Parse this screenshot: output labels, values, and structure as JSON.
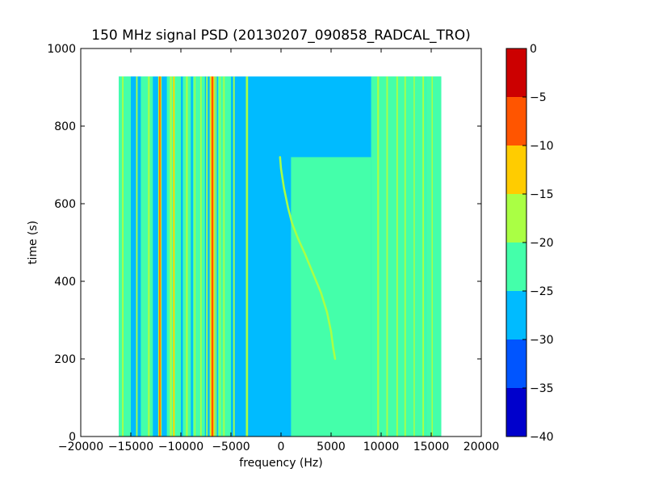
{
  "chart_data": {
    "type": "heatmap",
    "title": "150 MHz signal PSD (20130207_090858_RADCAL_TRO)",
    "xlabel": "frequency (Hz)",
    "ylabel": "time (s)",
    "xlim": [
      -20000,
      20000
    ],
    "ylim": [
      0,
      1000
    ],
    "x_ticks": [
      -20000,
      -15000,
      -10000,
      -5000,
      0,
      5000,
      10000,
      15000,
      20000
    ],
    "x_tick_labels": [
      "−20000",
      "−15000",
      "−10000",
      "−5000",
      "0",
      "5000",
      "10000",
      "15000",
      "20000"
    ],
    "y_ticks": [
      0,
      200,
      400,
      600,
      800,
      1000
    ],
    "y_tick_labels": [
      "0",
      "200",
      "400",
      "600",
      "800",
      "1000"
    ],
    "data_extent": {
      "x": [
        -16200,
        16000
      ],
      "y": [
        0,
        928
      ]
    },
    "background_level": -27.5,
    "colorbar": {
      "range": [
        -40,
        0
      ],
      "levels": [
        {
          "min": -40,
          "max": -35,
          "color": "#0000cc"
        },
        {
          "min": -35,
          "max": -30,
          "color": "#0055ff"
        },
        {
          "min": -30,
          "max": -25,
          "color": "#00bbff"
        },
        {
          "min": -25,
          "max": -20,
          "color": "#44ffaa"
        },
        {
          "min": -20,
          "max": -15,
          "color": "#aaff44"
        },
        {
          "min": -15,
          "max": -10,
          "color": "#ffcc00"
        },
        {
          "min": -10,
          "max": -5,
          "color": "#ff5500"
        },
        {
          "min": -5,
          "max": 0,
          "color": "#cc0000"
        }
      ],
      "ticks": [
        0,
        -5,
        -10,
        -15,
        -20,
        -25,
        -30,
        -35,
        -40
      ],
      "tick_labels": [
        "0",
        "−5",
        "−10",
        "−15",
        "−20",
        "−25",
        "−30",
        "−35",
        "−40"
      ]
    },
    "regions": [
      {
        "x": [
          -16200,
          -15000
        ],
        "y": [
          0,
          928
        ],
        "level": -22.5
      },
      {
        "x": [
          -15000,
          -14000
        ],
        "y": [
          0,
          928
        ],
        "level": -27.5
      },
      {
        "x": [
          -14000,
          -12800
        ],
        "y": [
          0,
          928
        ],
        "level": -22.5
      },
      {
        "x": [
          -11400,
          -10000
        ],
        "y": [
          0,
          928
        ],
        "level": -22.5
      },
      {
        "x": [
          -9800,
          -9000
        ],
        "y": [
          0,
          928
        ],
        "level": -22.5
      },
      {
        "x": [
          -8800,
          -7600
        ],
        "y": [
          0,
          928
        ],
        "level": -22.5
      },
      {
        "x": [
          -6300,
          -5000
        ],
        "y": [
          0,
          928
        ],
        "level": -22.5
      },
      {
        "x": [
          1000,
          9000
        ],
        "y": [
          0,
          720
        ],
        "level": -22.5
      },
      {
        "x": [
          9000,
          14500
        ],
        "y": [
          0,
          928
        ],
        "level": -22.5
      },
      {
        "x": [
          14500,
          16000
        ],
        "y": [
          0,
          928
        ],
        "level": -22.5
      }
    ],
    "vertical_lines": [
      {
        "x": -15800,
        "width": 150,
        "level": -17.5
      },
      {
        "x": -15300,
        "width": 120,
        "level": -22.5
      },
      {
        "x": -14400,
        "width": 150,
        "level": -17.5
      },
      {
        "x": -13200,
        "width": 180,
        "level": -17.5
      },
      {
        "x": -12100,
        "width": 340,
        "level": -17.5
      },
      {
        "x": -12100,
        "width": 220,
        "level": -12.5
      },
      {
        "x": -12100,
        "width": 110,
        "level": -7.5
      },
      {
        "x": -11000,
        "width": 200,
        "level": -17.5
      },
      {
        "x": -10700,
        "width": 220,
        "level": -17.5
      },
      {
        "x": -10700,
        "width": 120,
        "level": -12.5
      },
      {
        "x": -9400,
        "width": 180,
        "level": -17.5
      },
      {
        "x": -8600,
        "width": 120,
        "level": -17.5
      },
      {
        "x": -8000,
        "width": 150,
        "level": -17.5
      },
      {
        "x": -7400,
        "width": 150,
        "level": -17.5
      },
      {
        "x": -7050,
        "width": 150,
        "level": -17.5
      },
      {
        "x": -6850,
        "width": 500,
        "level": -17.5
      },
      {
        "x": -6850,
        "width": 350,
        "level": -12.5
      },
      {
        "x": -6850,
        "width": 170,
        "level": -7.5
      },
      {
        "x": -6500,
        "width": 120,
        "level": -17.5
      },
      {
        "x": -6100,
        "width": 120,
        "level": -17.5
      },
      {
        "x": -5700,
        "width": 150,
        "level": -17.5
      },
      {
        "x": -4700,
        "width": 150,
        "level": -17.5
      },
      {
        "x": -3400,
        "width": 220,
        "level": -17.5
      },
      {
        "x": 9700,
        "width": 180,
        "level": -17.5
      },
      {
        "x": 10600,
        "width": 150,
        "level": -17.5
      },
      {
        "x": 11600,
        "width": 150,
        "level": -17.5
      },
      {
        "x": 12400,
        "width": 150,
        "level": -17.5
      },
      {
        "x": 13300,
        "width": 120,
        "level": -17.5
      },
      {
        "x": 14200,
        "width": 150,
        "level": -17.5
      },
      {
        "x": 15100,
        "width": 120,
        "level": -17.5
      }
    ],
    "drift_trace": {
      "level": -17.5,
      "points": [
        [
          -100,
          720
        ],
        [
          0,
          690
        ],
        [
          300,
          640
        ],
        [
          700,
          590
        ],
        [
          1100,
          550
        ],
        [
          1700,
          510
        ],
        [
          2400,
          470
        ],
        [
          3200,
          420
        ],
        [
          4000,
          370
        ],
        [
          4600,
          320
        ],
        [
          5000,
          270
        ],
        [
          5200,
          230
        ],
        [
          5400,
          200
        ]
      ]
    }
  }
}
